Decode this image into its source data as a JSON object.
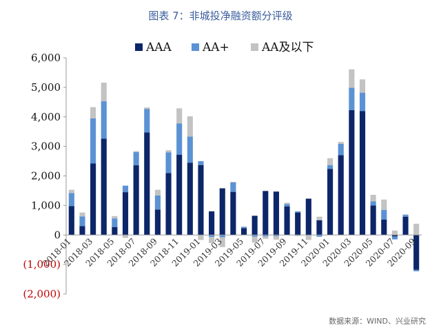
{
  "title": "图表 7：非城投净融资额分评级",
  "source": "数据来源：WIND、兴业研究",
  "colors": {
    "AAA": "#0d2669",
    "AA+": "#5b92d4",
    "AA及以下": "#c3c3c3",
    "negative_label": "#c00000"
  },
  "chart_data": {
    "type": "bar",
    "stacked": true,
    "title": "图表 7：非城投净融资额分评级",
    "xlabel": "",
    "ylabel": "",
    "ylim": [
      -2000,
      6000
    ],
    "yticks": [
      -2000,
      -1000,
      0,
      1000,
      2000,
      3000,
      4000,
      5000,
      6000
    ],
    "ytick_labels": [
      "(2,000)",
      "(1,000)",
      "0",
      "1,000",
      "2,000",
      "3,000",
      "4,000",
      "5,000",
      "6,000"
    ],
    "legend_position": "top-center",
    "grid": false,
    "categories": [
      "2018-01",
      "2018-02",
      "2018-03",
      "2018-04",
      "2018-05",
      "2018-06",
      "2018-07",
      "2018-08",
      "2018-09",
      "2018-10",
      "2018-11",
      "2018-12",
      "2019-01",
      "2019-02",
      "2019-03",
      "2019-04",
      "2019-05",
      "2019-06",
      "2019-07",
      "2019-08",
      "2019-09",
      "2019-10",
      "2019-11",
      "2019-12",
      "2020-01",
      "2020-02",
      "2020-03",
      "2020-04",
      "2020-05",
      "2020-06",
      "2020-07",
      "2020-08",
      "2020-09"
    ],
    "x_tick_labels": [
      "2018-01",
      "2018-03",
      "2018-05",
      "2018-07",
      "2018-09",
      "2018-11",
      "2019-01",
      "2019-03",
      "2019-05",
      "2019-07",
      "2019-09",
      "2019-11",
      "2020-01",
      "2020-03",
      "2020-05",
      "2020-07",
      "2020-09"
    ],
    "series": [
      {
        "name": "AAA",
        "values": [
          980,
          300,
          2420,
          3260,
          270,
          1450,
          2360,
          3470,
          860,
          2100,
          2720,
          2450,
          2370,
          800,
          1580,
          1460,
          230,
          650,
          1490,
          1470,
          970,
          760,
          1230,
          500,
          2240,
          2700,
          4230,
          4200,
          1000,
          520,
          -50,
          620,
          -1180
        ]
      },
      {
        "name": "AA+",
        "values": [
          440,
          330,
          1530,
          1270,
          290,
          220,
          450,
          800,
          480,
          700,
          1060,
          880,
          130,
          -70,
          -80,
          320,
          40,
          -60,
          -50,
          -40,
          80,
          40,
          -20,
          -60,
          130,
          390,
          760,
          620,
          140,
          330,
          -100,
          60,
          -50
        ]
      },
      {
        "name": "AA及以下",
        "values": [
          110,
          130,
          380,
          630,
          80,
          -100,
          30,
          50,
          190,
          70,
          510,
          690,
          -170,
          -200,
          -330,
          20,
          20,
          -200,
          -80,
          -120,
          40,
          -40,
          -150,
          120,
          230,
          60,
          620,
          450,
          220,
          350,
          150,
          20,
          380
        ]
      }
    ]
  }
}
